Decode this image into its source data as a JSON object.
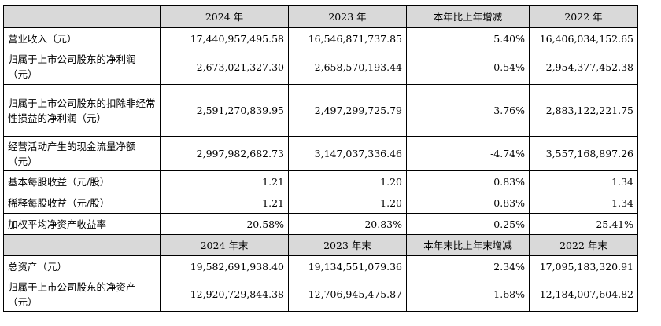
{
  "table": {
    "header1": [
      "",
      "2024 年",
      "2023 年",
      "本年比上年增减",
      "2022 年"
    ],
    "rows1": [
      {
        "label": "营业收入（元）",
        "v2024": "17,440,957,495.58",
        "v2023": "16,546,871,737.85",
        "change": "5.40%",
        "v2022": "16,406,034,152.65"
      },
      {
        "label": "归属于上市公司股东的净利润（元）",
        "v2024": "2,673,021,327.30",
        "v2023": "2,658,570,193.44",
        "change": "0.54%",
        "v2022": "2,954,377,452.38"
      },
      {
        "label": "归属于上市公司股东的扣除非经常性损益的净利润（元）",
        "v2024": "2,591,270,839.95",
        "v2023": "2,497,299,725.79",
        "change": "3.76%",
        "v2022": "2,883,122,221.75"
      },
      {
        "label": "经营活动产生的现金流量净额（元）",
        "v2024": "2,997,982,682.73",
        "v2023": "3,147,037,336.46",
        "change": "-4.74%",
        "v2022": "3,557,168,897.26"
      },
      {
        "label": "基本每股收益（元/股）",
        "v2024": "1.21",
        "v2023": "1.20",
        "change": "0.83%",
        "v2022": "1.34"
      },
      {
        "label": "稀释每股收益（元/股）",
        "v2024": "1.21",
        "v2023": "1.20",
        "change": "0.83%",
        "v2022": "1.34"
      },
      {
        "label": "加权平均净资产收益率",
        "v2024": "20.58%",
        "v2023": "20.83%",
        "change": "-0.25%",
        "v2022": "25.41%"
      }
    ],
    "header2": [
      "",
      "2024 年末",
      "2023 年末",
      "本年末比上年末增减",
      "2022 年末"
    ],
    "rows2": [
      {
        "label": "总资产（元）",
        "v2024": "19,582,691,938.40",
        "v2023": "19,134,551,079.36",
        "change": "2.34%",
        "v2022": "17,095,183,320.91"
      },
      {
        "label": "归属于上市公司股东的净资产（元）",
        "v2024": "12,920,729,844.38",
        "v2023": "12,706,945,475.87",
        "change": "1.68%",
        "v2022": "12,184,007,604.82"
      }
    ]
  }
}
